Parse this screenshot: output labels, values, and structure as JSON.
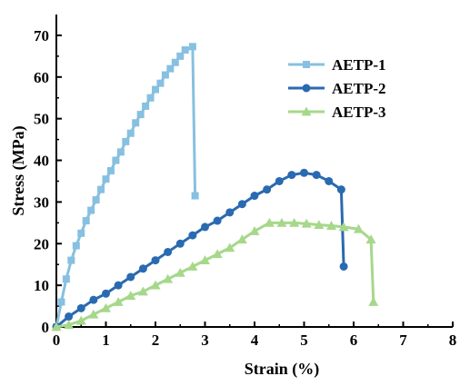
{
  "chart_data": {
    "type": "line",
    "title": "",
    "xlabel": "Strain (%)",
    "ylabel": "Stress (MPa)",
    "xlim": [
      0,
      8
    ],
    "ylim": [
      0,
      75
    ],
    "xticks": [
      0,
      1,
      2,
      3,
      4,
      5,
      6,
      7,
      8
    ],
    "yticks": [
      0,
      10,
      20,
      30,
      40,
      50,
      60,
      70
    ],
    "grid": false,
    "legend_position": "upper-right",
    "series": [
      {
        "name": "AETP-1",
        "color": "#87c0e0",
        "marker": "square",
        "x": [
          0,
          0.1,
          0.2,
          0.3,
          0.4,
          0.5,
          0.6,
          0.7,
          0.8,
          0.9,
          1.0,
          1.1,
          1.2,
          1.3,
          1.4,
          1.5,
          1.6,
          1.7,
          1.8,
          1.9,
          2.0,
          2.1,
          2.2,
          2.3,
          2.4,
          2.5,
          2.6,
          2.75,
          2.8
        ],
        "y": [
          0,
          6,
          11.5,
          16,
          19.5,
          22.5,
          25.5,
          28,
          30.5,
          33,
          35.5,
          37.5,
          40,
          42,
          44.5,
          46.5,
          49,
          51,
          53,
          55,
          57,
          58.5,
          60.5,
          62,
          63.5,
          65,
          66.5,
          67.3,
          31.5
        ]
      },
      {
        "name": "AETP-2",
        "color": "#2a6ab0",
        "marker": "circle",
        "x": [
          0,
          0.25,
          0.5,
          0.75,
          1.0,
          1.25,
          1.5,
          1.75,
          2.0,
          2.25,
          2.5,
          2.75,
          3.0,
          3.25,
          3.5,
          3.75,
          4.0,
          4.25,
          4.5,
          4.75,
          5.0,
          5.25,
          5.5,
          5.75,
          5.8
        ],
        "y": [
          0,
          2.5,
          4.5,
          6.5,
          8,
          10,
          12,
          14,
          16,
          18,
          20,
          22,
          24,
          25.5,
          27.5,
          29.5,
          31.5,
          33,
          35,
          36.5,
          37,
          36.5,
          35,
          33,
          14.5
        ]
      },
      {
        "name": "AETP-3",
        "color": "#a6d88a",
        "marker": "triangle",
        "x": [
          0,
          0.25,
          0.5,
          0.75,
          1.0,
          1.25,
          1.5,
          1.75,
          2.0,
          2.25,
          2.5,
          2.75,
          3.0,
          3.25,
          3.5,
          3.75,
          4.0,
          4.3,
          4.55,
          4.8,
          5.05,
          5.3,
          5.55,
          5.8,
          6.1,
          6.35,
          6.4
        ],
        "y": [
          0,
          0.5,
          1.5,
          3,
          4.5,
          6,
          7.5,
          8.5,
          10,
          11.5,
          13,
          14.5,
          16,
          17.5,
          19,
          21,
          23,
          25,
          25,
          25,
          24.8,
          24.5,
          24.3,
          24,
          23.5,
          21,
          6
        ]
      }
    ]
  }
}
